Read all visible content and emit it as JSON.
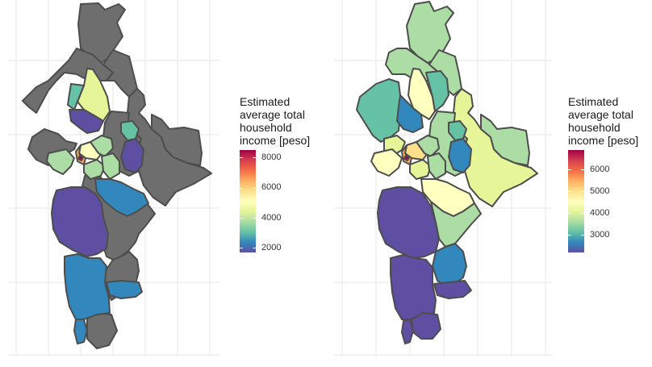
{
  "maps": [
    {
      "id": "left",
      "legend": {
        "title": "Estimated\naverage total\nhousehold\nincome [peso]",
        "min": 1700,
        "max": 8500,
        "ticks": [
          {
            "value": 2000,
            "label": "2000"
          },
          {
            "value": 4000,
            "label": "4000"
          },
          {
            "value": 6000,
            "label": "6000"
          },
          {
            "value": 8000,
            "label": "8000"
          }
        ]
      },
      "na_color": "#6e6e6e"
    },
    {
      "id": "right",
      "legend": {
        "title": "Estimated\naverage total\nhousehold\nincome [peso]",
        "min": 2200,
        "max": 6900,
        "ticks": [
          {
            "value": 3000,
            "label": "3000"
          },
          {
            "value": 4000,
            "label": "4000"
          },
          {
            "value": 5000,
            "label": "5000"
          },
          {
            "value": 6000,
            "label": "6000"
          }
        ]
      }
    }
  ],
  "palette": [
    "#5e4fa2",
    "#3288bd",
    "#66c2a5",
    "#abdda4",
    "#e6f598",
    "#ffffbf",
    "#fee08b",
    "#fdae61",
    "#f46d43",
    "#d53e4f",
    "#9e0142"
  ],
  "border_color": "#4d4d4d",
  "grid_color": "#ebebeb"
}
